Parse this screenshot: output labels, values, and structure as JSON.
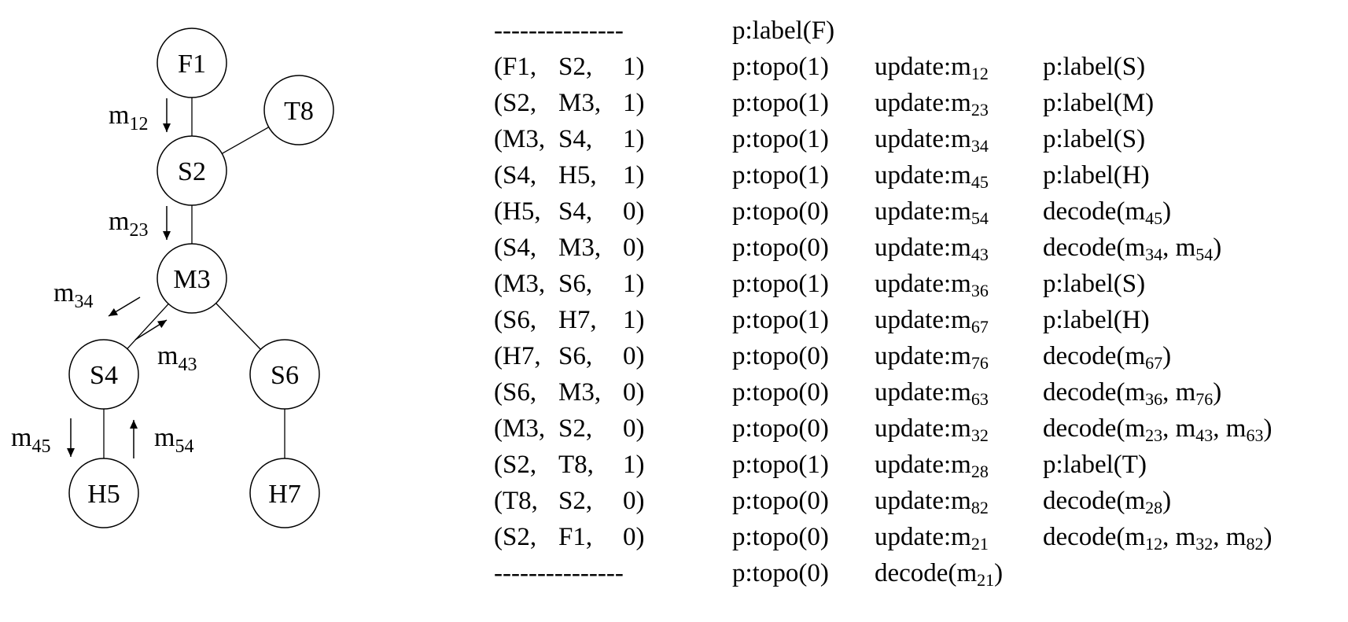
{
  "tree": {
    "nodes": [
      {
        "id": "F1"
      },
      {
        "id": "T8"
      },
      {
        "id": "S2"
      },
      {
        "id": "M3"
      },
      {
        "id": "S4"
      },
      {
        "id": "S6"
      },
      {
        "id": "H5"
      },
      {
        "id": "H7"
      }
    ],
    "edges": [
      {
        "from": "F1",
        "to": "S2"
      },
      {
        "from": "S2",
        "to": "T8"
      },
      {
        "from": "S2",
        "to": "M3"
      },
      {
        "from": "M3",
        "to": "S4"
      },
      {
        "from": "M3",
        "to": "S6"
      },
      {
        "from": "S4",
        "to": "H5"
      },
      {
        "from": "S6",
        "to": "H7"
      }
    ],
    "messages": [
      {
        "base": "m",
        "sub": "12",
        "direction": "down"
      },
      {
        "base": "m",
        "sub": "23",
        "direction": "down"
      },
      {
        "base": "m",
        "sub": "34",
        "direction": "down-left"
      },
      {
        "base": "m",
        "sub": "43",
        "direction": "up-right"
      },
      {
        "base": "m",
        "sub": "45",
        "direction": "down"
      },
      {
        "base": "m",
        "sub": "54",
        "direction": "up"
      }
    ]
  },
  "steps": [
    {
      "triple": [
        "---------------"
      ],
      "topo": "p:label(F)",
      "update": null,
      "action": null
    },
    {
      "triple": [
        "(F1,",
        "S2,",
        "1)"
      ],
      "topo": "p:topo(1)",
      "update": {
        "prefix": "update:m",
        "sub": "12"
      },
      "action": {
        "text": "p:label(S)"
      }
    },
    {
      "triple": [
        "(S2,",
        "M3,",
        "1)"
      ],
      "topo": "p:topo(1)",
      "update": {
        "prefix": "update:m",
        "sub": "23"
      },
      "action": {
        "text": "p:label(M)"
      }
    },
    {
      "triple": [
        "(M3,",
        "S4,",
        "1)"
      ],
      "topo": "p:topo(1)",
      "update": {
        "prefix": "update:m",
        "sub": "34"
      },
      "action": {
        "text": "p:label(S)"
      }
    },
    {
      "triple": [
        "(S4,",
        "H5,",
        "1)"
      ],
      "topo": "p:topo(1)",
      "update": {
        "prefix": "update:m",
        "sub": "45"
      },
      "action": {
        "text": "p:label(H)"
      }
    },
    {
      "triple": [
        "(H5,",
        "S4,",
        "0)"
      ],
      "topo": "p:topo(0)",
      "update": {
        "prefix": "update:m",
        "sub": "54"
      },
      "action": {
        "decode": [
          "45"
        ]
      }
    },
    {
      "triple": [
        "(S4,",
        "M3,",
        "0)"
      ],
      "topo": "p:topo(0)",
      "update": {
        "prefix": "update:m",
        "sub": "43"
      },
      "action": {
        "decode": [
          "34",
          "54"
        ]
      }
    },
    {
      "triple": [
        "(M3,",
        "S6,",
        "1)"
      ],
      "topo": "p:topo(1)",
      "update": {
        "prefix": "update:m",
        "sub": "36"
      },
      "action": {
        "text": "p:label(S)"
      }
    },
    {
      "triple": [
        "(S6,",
        "H7,",
        "1)"
      ],
      "topo": "p:topo(1)",
      "update": {
        "prefix": "update:m",
        "sub": "67"
      },
      "action": {
        "text": "p:label(H)"
      }
    },
    {
      "triple": [
        "(H7,",
        "S6,",
        "0)"
      ],
      "topo": "p:topo(0)",
      "update": {
        "prefix": "update:m",
        "sub": "76"
      },
      "action": {
        "decode": [
          "67"
        ]
      }
    },
    {
      "triple": [
        "(S6,",
        "M3,",
        "0)"
      ],
      "topo": "p:topo(0)",
      "update": {
        "prefix": "update:m",
        "sub": "63"
      },
      "action": {
        "decode": [
          "36",
          "76"
        ]
      }
    },
    {
      "triple": [
        "(M3,",
        "S2,",
        "0)"
      ],
      "topo": "p:topo(0)",
      "update": {
        "prefix": "update:m",
        "sub": "32"
      },
      "action": {
        "decode": [
          "23",
          "43",
          "63"
        ]
      }
    },
    {
      "triple": [
        "(S2,",
        "T8,",
        "1)"
      ],
      "topo": "p:topo(1)",
      "update": {
        "prefix": "update:m",
        "sub": "28"
      },
      "action": {
        "text": "p:label(T)"
      }
    },
    {
      "triple": [
        "(T8,",
        "S2,",
        "0)"
      ],
      "topo": "p:topo(0)",
      "update": {
        "prefix": "update:m",
        "sub": "82"
      },
      "action": {
        "decode": [
          "28"
        ]
      }
    },
    {
      "triple": [
        "(S2,",
        "F1,",
        "0)"
      ],
      "topo": "p:topo(0)",
      "update": {
        "prefix": "update:m",
        "sub": "21"
      },
      "action": {
        "decode": [
          "12",
          "32",
          "82"
        ]
      }
    },
    {
      "triple": [
        "---------------"
      ],
      "topo": "p:topo(0)",
      "update": {
        "decode": [
          "21"
        ]
      },
      "action": null
    }
  ],
  "decode_word": "decode",
  "message_base": "m"
}
